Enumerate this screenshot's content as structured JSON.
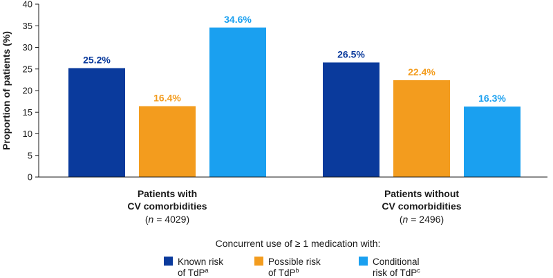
{
  "chart_data": {
    "type": "bar",
    "ylabel": "Proportion of patients (%)",
    "ylim": [
      0,
      40
    ],
    "yticks": [
      0,
      5,
      10,
      15,
      20,
      25,
      30,
      35,
      40
    ],
    "grid": false,
    "categories": [
      {
        "label_line1": "Patients with",
        "label_line2": "CV comorbidities",
        "n_label": "(n = 4029)",
        "n_italic": "n",
        "n_rest": " = 4029)"
      },
      {
        "label_line1": "Patients without",
        "label_line2": "CV comorbidities",
        "n_label": "(n = 2496)",
        "n_italic": "n",
        "n_rest": " = 2496)"
      }
    ],
    "series": [
      {
        "name": "Known risk of TdP",
        "legend_line1": "Known risk",
        "legend_line2": "of TdP",
        "superscript": "a",
        "color": "#0a3a9c",
        "values": [
          25.2,
          26.5
        ],
        "labels": [
          "25.2%",
          "26.5%"
        ]
      },
      {
        "name": "Possible risk of TdP",
        "legend_line1": "Possible risk",
        "legend_line2": "of TdP",
        "superscript": "b",
        "color": "#f39c1e",
        "values": [
          16.4,
          22.4
        ],
        "labels": [
          "16.4%",
          "22.4%"
        ]
      },
      {
        "name": "Conditional risk of TdP",
        "legend_line1": "Conditional",
        "legend_line2": "risk of TdP",
        "superscript": "c",
        "color": "#1aa0f0",
        "values": [
          34.6,
          16.3
        ],
        "labels": [
          "34.6%",
          "16.3%"
        ]
      }
    ],
    "legend_title": "Concurrent use of ≥ 1 medication with:",
    "legend_position": "bottom"
  }
}
